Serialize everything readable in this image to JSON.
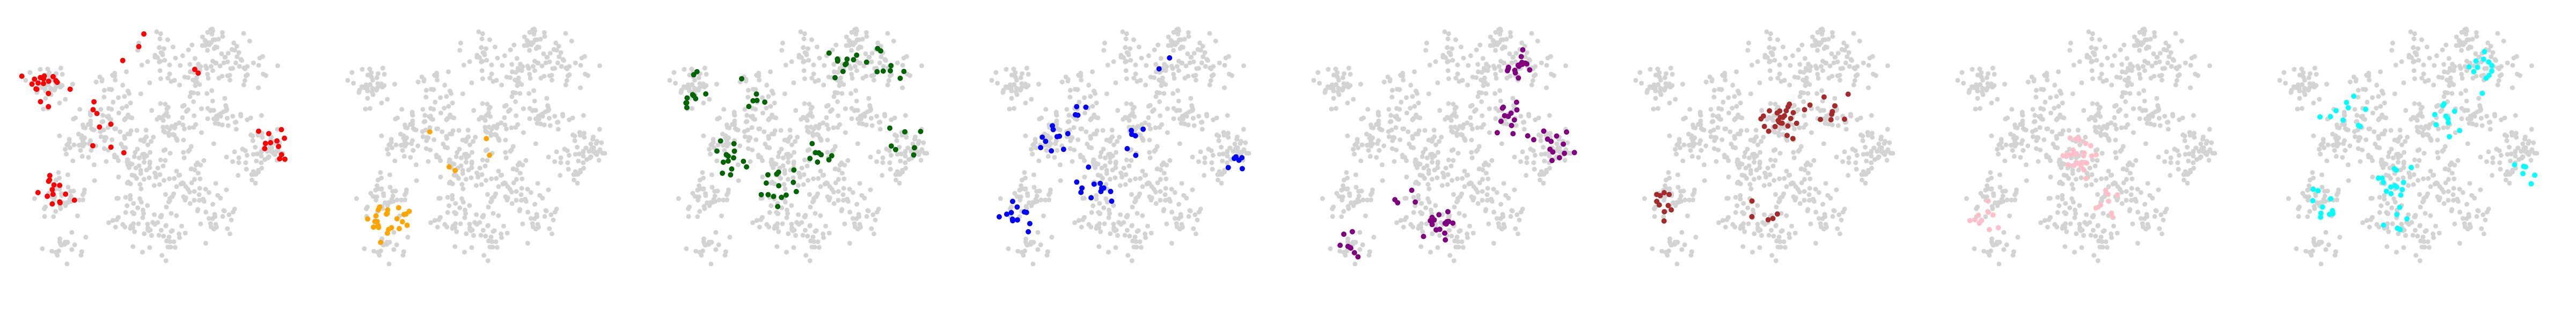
{
  "chart_data": [
    {
      "type": "scatter",
      "highlight_color": "#ff0000",
      "background_color": "#d3d3d3",
      "grid": false,
      "axes_visible": false,
      "highlight_clusters": [
        [
          -3.6,
          2.3,
          18
        ],
        [
          -3.3,
          -1.0,
          14
        ],
        [
          3.2,
          0.5,
          12
        ],
        [
          -0.9,
          3.6,
          3
        ],
        [
          -2.2,
          1.4,
          4
        ],
        [
          -1.5,
          0.3,
          4
        ],
        [
          0.4,
          2.9,
          2
        ]
      ]
    },
    {
      "type": "scatter",
      "highlight_color": "#ffa500",
      "background_color": "#d3d3d3",
      "grid": false,
      "axes_visible": false,
      "highlight_clusters": [
        [
          -2.9,
          -1.9,
          24
        ],
        [
          -1.1,
          0.1,
          3
        ],
        [
          -0.1,
          0.6,
          2
        ]
      ]
    },
    {
      "type": "scatter",
      "highlight_color": "#006400",
      "background_color": "#d3d3d3",
      "grid": false,
      "axes_visible": false,
      "highlight_clusters": [
        [
          -3.5,
          2.0,
          10
        ],
        [
          -2.4,
          0.0,
          14
        ],
        [
          -1.0,
          -0.8,
          14
        ],
        [
          0.2,
          0.2,
          8
        ],
        [
          1.0,
          2.9,
          12
        ],
        [
          2.3,
          2.8,
          8
        ],
        [
          3.0,
          0.5,
          7
        ],
        [
          -1.6,
          1.8,
          6
        ]
      ]
    },
    {
      "type": "scatter",
      "highlight_color": "#0000ff",
      "background_color": "#d3d3d3",
      "grid": false,
      "axes_visible": false,
      "highlight_clusters": [
        [
          -3.4,
          -1.5,
          12
        ],
        [
          -2.4,
          0.7,
          10
        ],
        [
          -1.1,
          -0.9,
          12
        ],
        [
          0.0,
          0.5,
          6
        ],
        [
          3.2,
          0.0,
          6
        ],
        [
          1.3,
          3.6,
          2
        ],
        [
          -1.6,
          1.5,
          4
        ]
      ]
    },
    {
      "type": "scatter",
      "highlight_color": "#800080",
      "background_color": "#d3d3d3",
      "grid": false,
      "axes_visible": false,
      "highlight_clusters": [
        [
          1.9,
          3.0,
          16
        ],
        [
          1.6,
          1.4,
          12
        ],
        [
          3.0,
          0.6,
          14
        ],
        [
          -0.5,
          -2.0,
          16
        ],
        [
          -3.1,
          -2.6,
          8
        ],
        [
          -1.5,
          -1.2,
          4
        ]
      ]
    },
    {
      "type": "scatter",
      "highlight_color": "#a52a2a",
      "background_color": "#d3d3d3",
      "grid": false,
      "axes_visible": false,
      "highlight_clusters": [
        [
          0.1,
          1.3,
          24
        ],
        [
          1.6,
          1.7,
          10
        ],
        [
          -3.4,
          -1.4,
          10
        ],
        [
          -0.4,
          -1.5,
          5
        ]
      ]
    },
    {
      "type": "scatter",
      "highlight_color": "#ffc0cb",
      "background_color": "#d3d3d3",
      "grid": false,
      "axes_visible": false,
      "highlight_clusters": [
        [
          -0.7,
          0.2,
          26
        ],
        [
          -3.3,
          -1.8,
          10
        ],
        [
          0.5,
          -1.3,
          8
        ]
      ]
    },
    {
      "type": "scatter",
      "highlight_color": "#00ffff",
      "background_color": "#d3d3d3",
      "grid": false,
      "axes_visible": false,
      "highlight_clusters": [
        [
          -3.0,
          -1.4,
          10
        ],
        [
          -2.2,
          1.6,
          10
        ],
        [
          -0.8,
          -0.7,
          14
        ],
        [
          0.9,
          1.4,
          10
        ],
        [
          1.9,
          3.0,
          12
        ],
        [
          3.0,
          -0.3,
          6
        ],
        [
          -0.6,
          -2.0,
          6
        ]
      ]
    }
  ]
}
